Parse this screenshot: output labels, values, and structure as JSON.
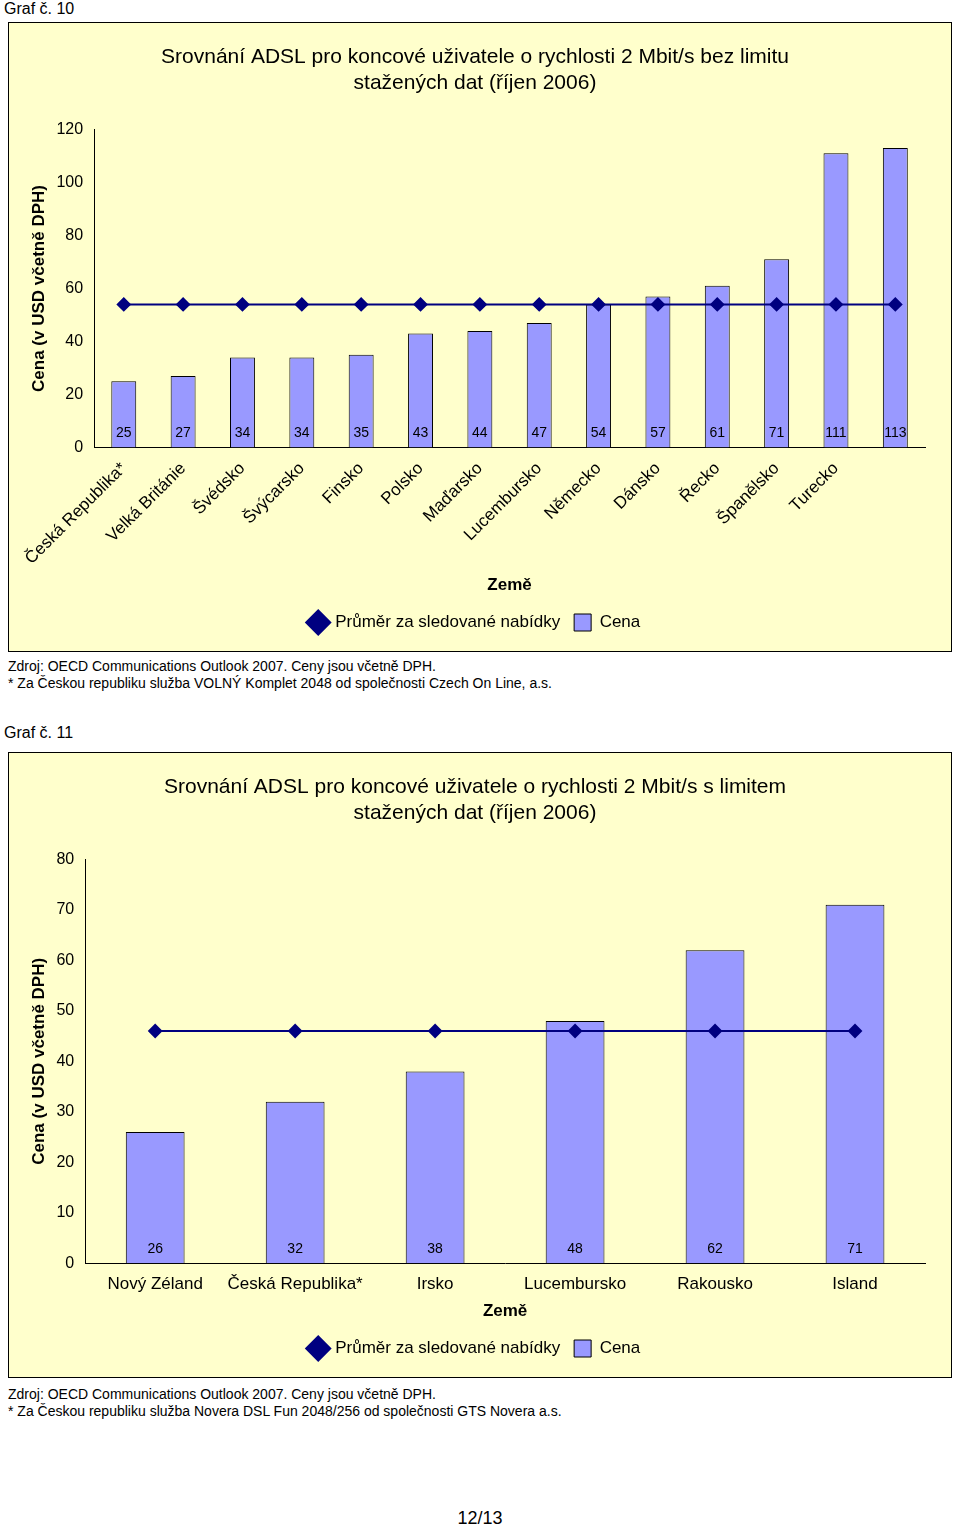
{
  "chart_data": [
    {
      "type": "bar",
      "title": [
        "Srovnání ADSL pro koncové uživatele o rychlosti 2 Mbit/s bez limitu",
        "stažených dat (říjen 2006)"
      ],
      "x_label": "Země",
      "y_label": "Cena (v USD včetně DPH)",
      "categories": [
        "Česká Republika*",
        "Velká Británie",
        "Švédsko",
        "Švýcarsko",
        "Finsko",
        "Polsko",
        "Maďarsko",
        "Lucembursko",
        "Německo",
        "Dánsko",
        "Řecko",
        "Španělsko",
        "Turecko",
        null
      ],
      "series": [
        {
          "name": "Cena",
          "type": "bar",
          "color": "#9999ff",
          "data_labels": true,
          "values": [
            25,
            27,
            34,
            34,
            35,
            43,
            44,
            47,
            54,
            57,
            61,
            71,
            111,
            113
          ]
        },
        {
          "name": "Průměr za sledované nabídky",
          "type": "line",
          "color": "#000080",
          "marker": "diamond",
          "line_style": "solid",
          "values": [
            54,
            54,
            54,
            54,
            54,
            54,
            54,
            54,
            54,
            54,
            54,
            54,
            54,
            54
          ]
        }
      ],
      "ylim": [
        0,
        120
      ],
      "yticks": [
        0,
        20,
        40,
        60,
        80,
        100,
        120
      ],
      "grid": false,
      "legend": "bottom"
    },
    {
      "type": "bar",
      "title": [
        "Srovnání ADSL pro koncové uživatele o rychlosti 2 Mbit/s s limitem",
        "stažených dat (říjen 2006)"
      ],
      "x_label": "Země",
      "y_label": "Cena (v USD včetně DPH)",
      "categories": [
        "Nový Zéland",
        "Česká Republika*",
        "Irsko",
        "Lucembursko",
        "Rakousko",
        "Island"
      ],
      "series": [
        {
          "name": "Cena",
          "type": "bar",
          "color": "#9999ff",
          "data_labels": true,
          "values": [
            26,
            32,
            38,
            48,
            62,
            71
          ]
        },
        {
          "name": "Průměr za sledované nabídky",
          "type": "line",
          "color": "#000080",
          "marker": "diamond",
          "line_style": "solid",
          "values": [
            46,
            46,
            46,
            46,
            46,
            46
          ]
        }
      ],
      "ylim": [
        0,
        80
      ],
      "yticks": [
        0,
        10,
        20,
        30,
        40,
        50,
        60,
        70,
        80
      ],
      "grid": false,
      "legend": "bottom"
    }
  ],
  "figures": [
    {
      "caption": "Graf č. 10",
      "notes": [
        "Zdroj: OECD Communications Outlook 2007. Ceny jsou včetně DPH.",
        "* Za Českou republiku služba VOLNÝ Komplet 2048 od společnosti Czech On Line, a.s."
      ]
    },
    {
      "caption": "Graf č. 11",
      "notes": [
        "Zdroj: OECD Communications Outlook 2007. Ceny jsou včetně DPH.",
        "* Za Českou republiku služba Novera DSL Fun 2048/256 od společnosti GTS Novera a.s."
      ]
    }
  ],
  "page_number": "12/13"
}
